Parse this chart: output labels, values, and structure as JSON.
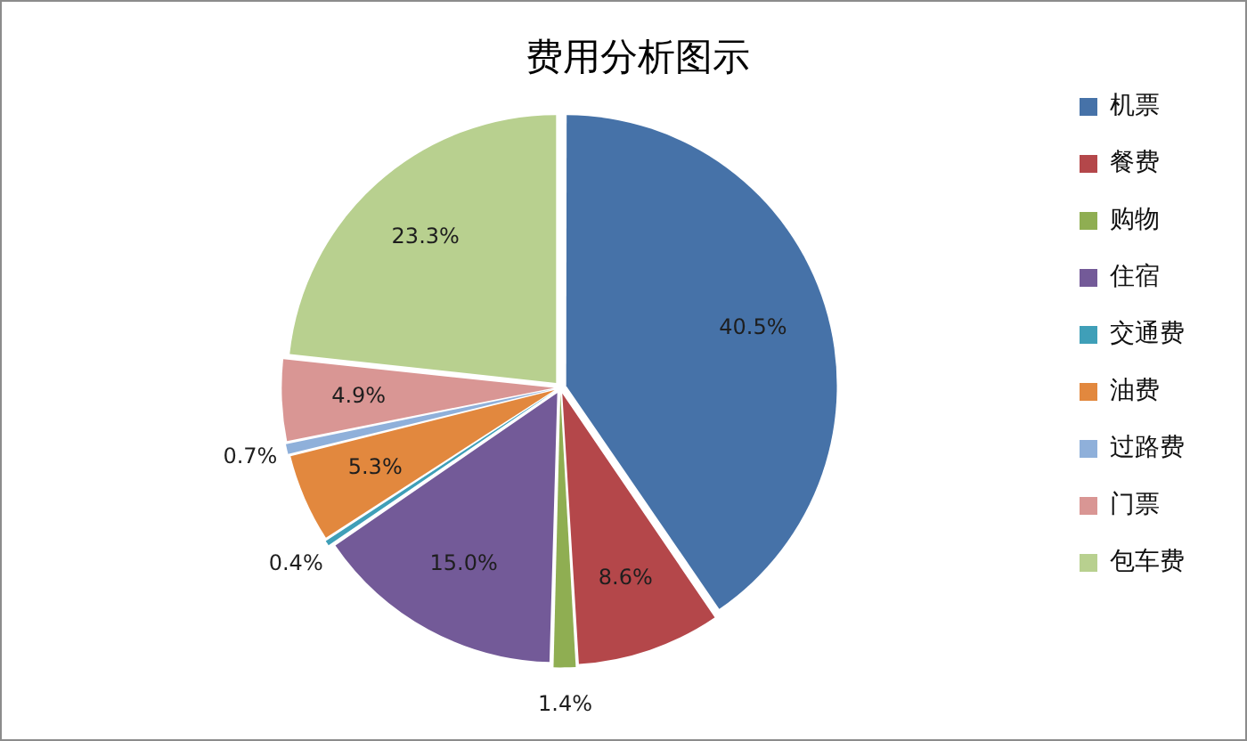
{
  "chart_data": {
    "type": "pie",
    "title": "费用分析图示",
    "categories": [
      "机票",
      "餐费",
      "购物",
      "住宿",
      "交通费",
      "油费",
      "过路费",
      "门票",
      "包车费"
    ],
    "values": [
      40.5,
      8.6,
      1.4,
      15.0,
      0.4,
      5.3,
      0.7,
      4.9,
      23.3
    ],
    "colors": [
      "#4672a8",
      "#b4474a",
      "#8fae52",
      "#735a98",
      "#3f9fb8",
      "#e2883e",
      "#8fb0da",
      "#d99694",
      "#b8d08f"
    ],
    "value_labels": [
      "40.5%",
      "8.6%",
      "1.4%",
      "15.0%",
      "0.4%",
      "5.3%",
      "0.7%",
      "4.9%",
      "23.3%"
    ],
    "legend": "right"
  }
}
